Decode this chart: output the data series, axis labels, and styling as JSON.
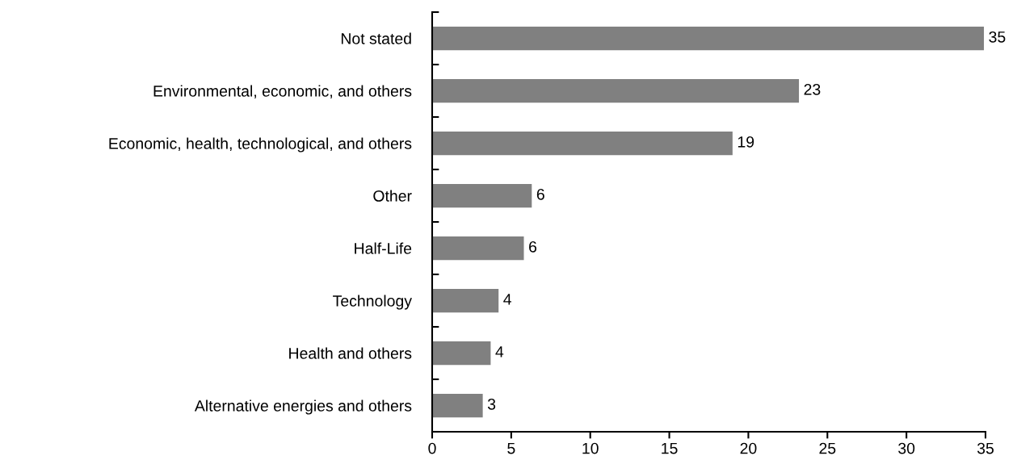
{
  "chart_data": {
    "type": "bar",
    "orientation": "horizontal",
    "categories": [
      "Not stated",
      "Environmental, economic, and others",
      "Economic, health, technological, and others",
      "Other",
      "Half-Life",
      "Technology",
      "Health and others",
      "Alternative energies and others"
    ],
    "values": [
      34.9,
      23.2,
      19.0,
      6.3,
      5.8,
      4.2,
      3.7,
      3.2
    ],
    "value_labels": [
      "35",
      "23",
      "19",
      "6",
      "6",
      "4",
      "4",
      "3"
    ],
    "color": "#808080",
    "xlim": [
      0,
      35
    ],
    "xticks": [
      0,
      5,
      10,
      15,
      20,
      25,
      30,
      35
    ],
    "grid": false
  }
}
